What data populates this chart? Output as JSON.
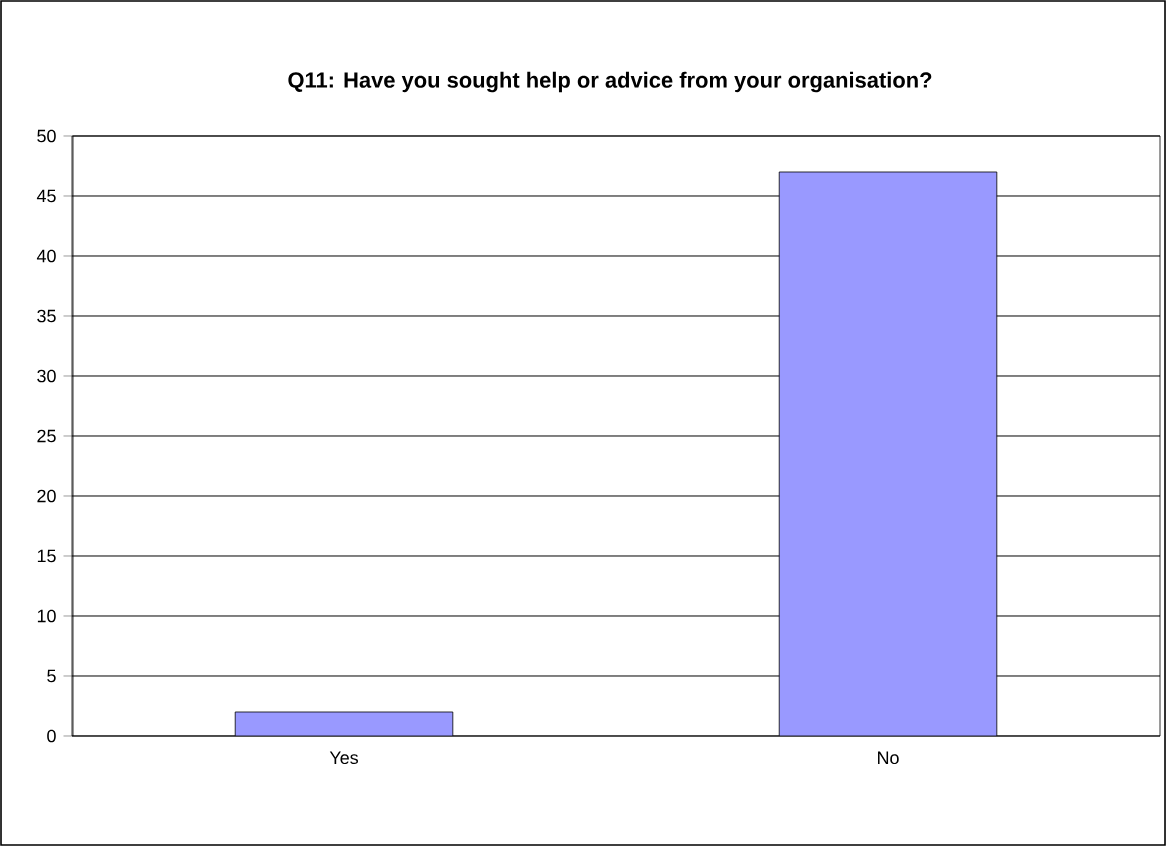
{
  "chart_data": {
    "type": "bar",
    "title": "Q11: Have you sought help or advice from your organisation?",
    "categories": [
      "Yes",
      "No"
    ],
    "values": [
      2,
      47
    ],
    "color": "#9999ff",
    "ylim": [
      0,
      50
    ],
    "yticks": [
      0,
      5,
      10,
      15,
      20,
      25,
      30,
      35,
      40,
      45,
      50
    ],
    "grid": "y"
  }
}
